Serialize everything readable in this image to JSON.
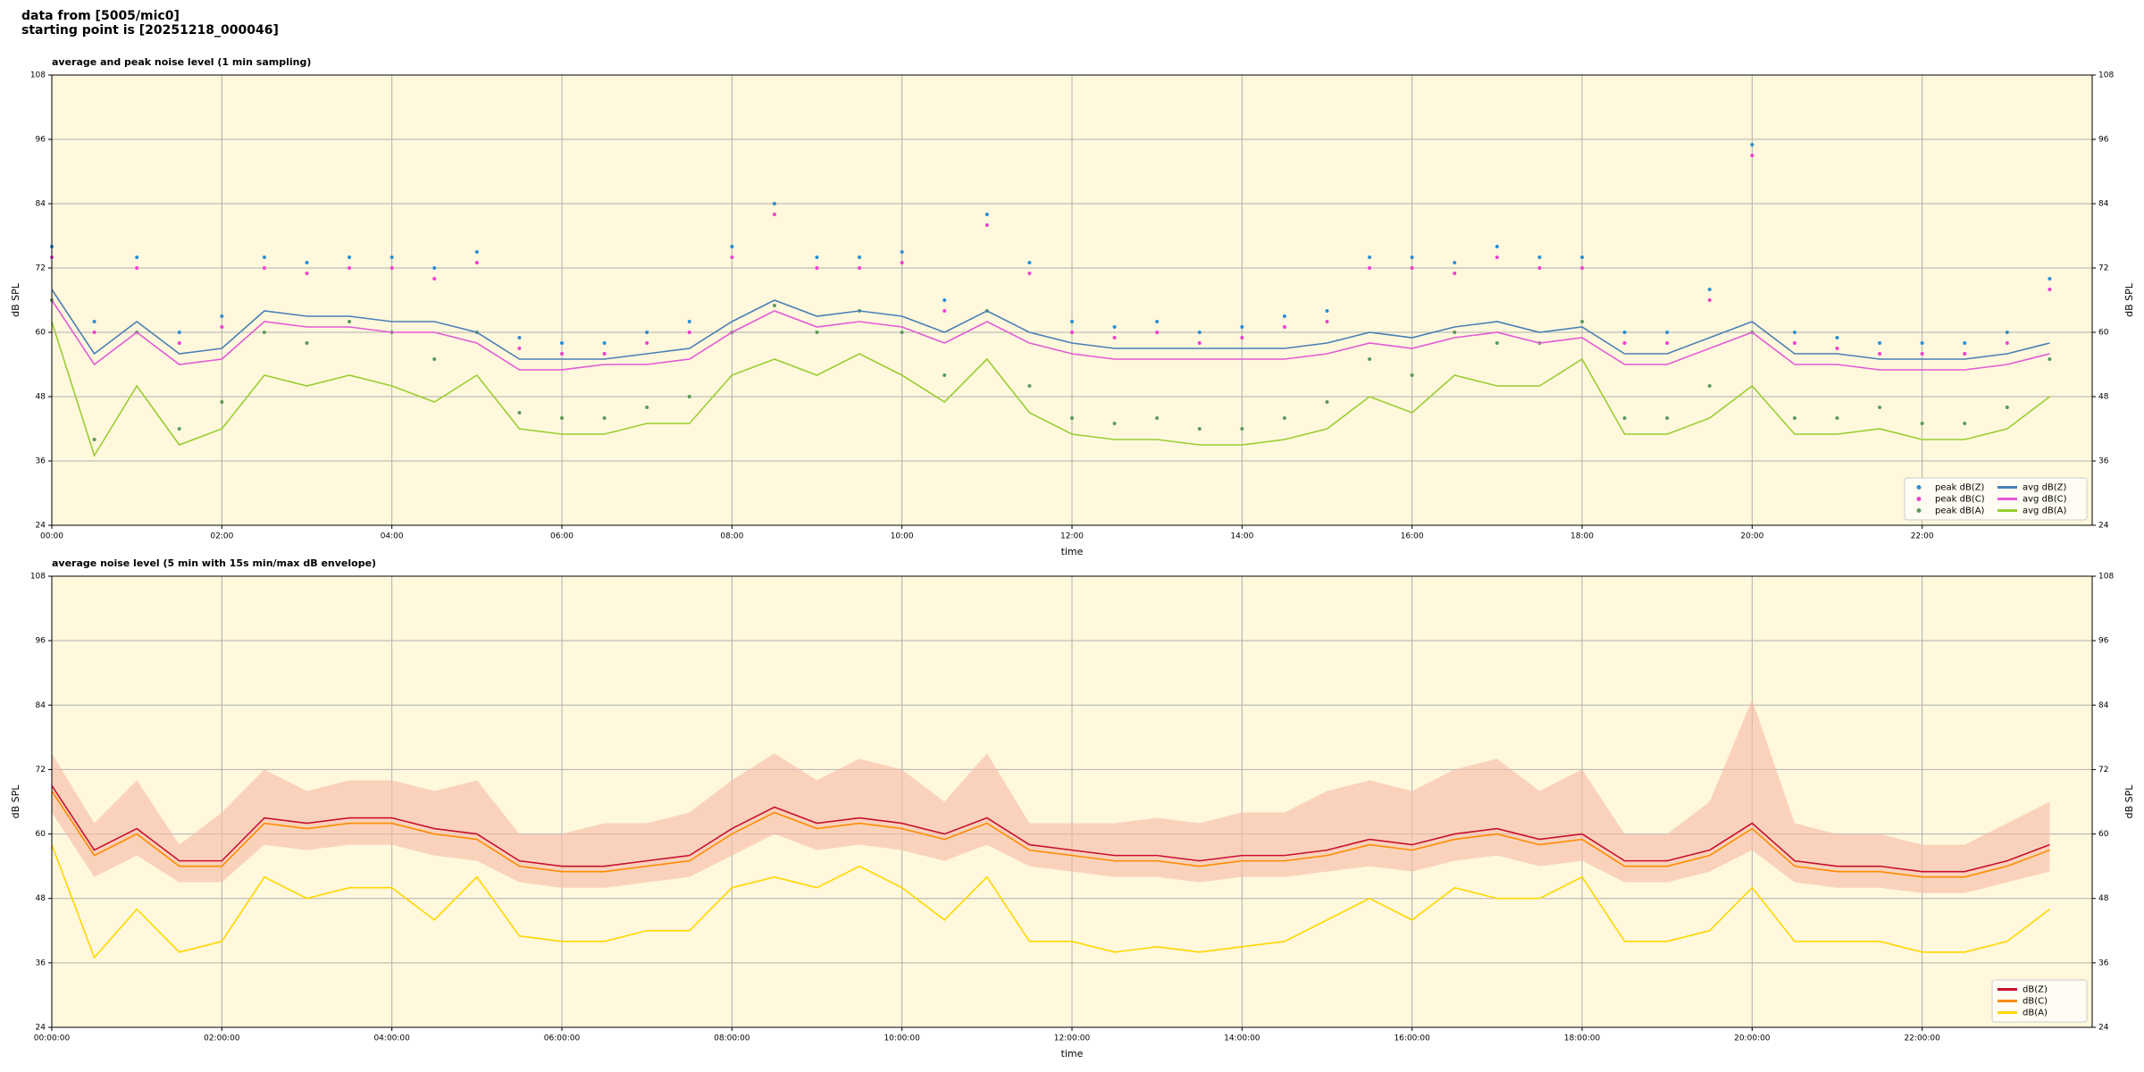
{
  "header": {
    "line1": "data from [5005/mic0]",
    "line2": "starting point is [20251218_000046]"
  },
  "chart_data": [
    {
      "type": "line",
      "title": "average and peak noise level (1 min sampling)",
      "xlabel": "time",
      "ylabel": "dB SPL",
      "x": [
        0,
        0.5,
        1,
        1.5,
        2,
        2.5,
        3,
        3.5,
        4,
        4.5,
        5,
        5.5,
        6,
        6.5,
        7,
        7.5,
        8,
        8.5,
        9,
        9.5,
        10,
        10.5,
        11,
        11.5,
        12,
        12.5,
        13,
        13.5,
        14,
        14.5,
        15,
        15.5,
        16,
        16.5,
        17,
        17.5,
        18,
        18.5,
        19,
        19.5,
        20,
        20.5,
        21,
        21.5,
        22,
        22.5,
        23,
        23.5
      ],
      "xlim": [
        0,
        24
      ],
      "xticks": [
        {
          "value": 0,
          "label": "00:00"
        },
        {
          "value": 2,
          "label": "02:00"
        },
        {
          "value": 4,
          "label": "04:00"
        },
        {
          "value": 6,
          "label": "06:00"
        },
        {
          "value": 8,
          "label": "08:00"
        },
        {
          "value": 10,
          "label": "10:00"
        },
        {
          "value": 12,
          "label": "12:00"
        },
        {
          "value": 14,
          "label": "14:00"
        },
        {
          "value": 16,
          "label": "16:00"
        },
        {
          "value": 18,
          "label": "18:00"
        },
        {
          "value": 20,
          "label": "20:00"
        },
        {
          "value": 22,
          "label": "22:00"
        }
      ],
      "ylim": [
        24,
        108
      ],
      "yticks": [
        24,
        36,
        48,
        60,
        72,
        84,
        96,
        108
      ],
      "grid": true,
      "background": "#fff8dc",
      "legend": "lower right",
      "legend_columns": 2,
      "series": [
        {
          "name": "peak dB(Z)",
          "type": "scatter",
          "color": "#2a8fd6",
          "values": [
            76,
            62,
            74,
            60,
            63,
            74,
            73,
            74,
            74,
            72,
            75,
            59,
            58,
            58,
            60,
            62,
            76,
            84,
            74,
            74,
            75,
            66,
            82,
            73,
            62,
            61,
            62,
            60,
            61,
            63,
            64,
            74,
            74,
            73,
            76,
            74,
            74,
            60,
            60,
            68,
            95,
            60,
            59,
            58,
            58,
            58,
            60,
            70
          ]
        },
        {
          "name": "peak dB(C)",
          "type": "scatter",
          "color": "#f03fd0",
          "values": [
            74,
            60,
            72,
            58,
            61,
            72,
            71,
            72,
            72,
            70,
            73,
            57,
            56,
            56,
            58,
            60,
            74,
            82,
            72,
            72,
            73,
            64,
            80,
            71,
            60,
            59,
            60,
            58,
            59,
            61,
            62,
            72,
            72,
            71,
            74,
            72,
            72,
            58,
            58,
            66,
            93,
            58,
            57,
            56,
            56,
            56,
            58,
            68
          ]
        },
        {
          "name": "peak dB(A)",
          "type": "scatter",
          "color": "#5c9a5c",
          "values": [
            66,
            40,
            60,
            42,
            47,
            60,
            58,
            62,
            60,
            55,
            60,
            45,
            44,
            44,
            46,
            48,
            60,
            65,
            60,
            64,
            60,
            52,
            64,
            50,
            44,
            43,
            44,
            42,
            42,
            44,
            47,
            55,
            52,
            60,
            58,
            58,
            62,
            44,
            44,
            50,
            60,
            44,
            44,
            46,
            43,
            43,
            46,
            55
          ]
        },
        {
          "name": "avg dB(Z)",
          "type": "line",
          "color": "#4a7fb5",
          "values": [
            68,
            56,
            62,
            56,
            57,
            64,
            63,
            63,
            62,
            62,
            60,
            55,
            55,
            55,
            56,
            57,
            62,
            66,
            63,
            64,
            63,
            60,
            64,
            60,
            58,
            57,
            57,
            57,
            57,
            57,
            58,
            60,
            59,
            61,
            62,
            60,
            61,
            56,
            56,
            59,
            62,
            56,
            56,
            55,
            55,
            55,
            56,
            58
          ]
        },
        {
          "name": "avg dB(C)",
          "type": "line",
          "color": "#e25ad6",
          "values": [
            66,
            54,
            60,
            54,
            55,
            62,
            61,
            61,
            60,
            60,
            58,
            53,
            53,
            54,
            54,
            55,
            60,
            64,
            61,
            62,
            61,
            58,
            62,
            58,
            56,
            55,
            55,
            55,
            55,
            55,
            56,
            58,
            57,
            59,
            60,
            58,
            59,
            54,
            54,
            57,
            60,
            54,
            54,
            53,
            53,
            53,
            54,
            56
          ]
        },
        {
          "name": "avg dB(A)",
          "type": "line",
          "color": "#9acd32",
          "values": [
            62,
            37,
            50,
            39,
            42,
            52,
            50,
            52,
            50,
            47,
            52,
            42,
            41,
            41,
            43,
            43,
            52,
            55,
            52,
            56,
            52,
            47,
            55,
            45,
            41,
            40,
            40,
            39,
            39,
            40,
            42,
            48,
            45,
            52,
            50,
            50,
            55,
            41,
            41,
            44,
            50,
            41,
            41,
            42,
            40,
            40,
            42,
            48
          ]
        }
      ]
    },
    {
      "type": "line",
      "title": "average noise level (5 min with 15s min/max dB envelope)",
      "xlabel": "time",
      "ylabel": "dB SPL",
      "x": [
        0,
        0.5,
        1,
        1.5,
        2,
        2.5,
        3,
        3.5,
        4,
        4.5,
        5,
        5.5,
        6,
        6.5,
        7,
        7.5,
        8,
        8.5,
        9,
        9.5,
        10,
        10.5,
        11,
        11.5,
        12,
        12.5,
        13,
        13.5,
        14,
        14.5,
        15,
        15.5,
        16,
        16.5,
        17,
        17.5,
        18,
        18.5,
        19,
        19.5,
        20,
        20.5,
        21,
        21.5,
        22,
        22.5,
        23,
        23.5
      ],
      "xlim": [
        0,
        24
      ],
      "xticks": [
        {
          "value": 0,
          "label": "00:00:00"
        },
        {
          "value": 2,
          "label": "02:00:00"
        },
        {
          "value": 4,
          "label": "04:00:00"
        },
        {
          "value": 6,
          "label": "06:00:00"
        },
        {
          "value": 8,
          "label": "08:00:00"
        },
        {
          "value": 10,
          "label": "10:00:00"
        },
        {
          "value": 12,
          "label": "12:00:00"
        },
        {
          "value": 14,
          "label": "14:00:00"
        },
        {
          "value": 16,
          "label": "16:00:00"
        },
        {
          "value": 18,
          "label": "18:00:00"
        },
        {
          "value": 20,
          "label": "20:00:00"
        },
        {
          "value": 22,
          "label": "22:00:00"
        }
      ],
      "ylim": [
        24,
        108
      ],
      "yticks": [
        24,
        36,
        48,
        60,
        72,
        84,
        96,
        108
      ],
      "grid": true,
      "background": "#fff8dc",
      "legend": "lower right",
      "legend_columns": 1,
      "envelope": {
        "color": "#f6b9a6",
        "upper": [
          75,
          62,
          70,
          58,
          64,
          72,
          68,
          70,
          70,
          68,
          70,
          60,
          60,
          62,
          62,
          64,
          70,
          75,
          70,
          74,
          72,
          66,
          75,
          62,
          62,
          62,
          63,
          62,
          64,
          64,
          68,
          70,
          68,
          72,
          74,
          68,
          72,
          60,
          60,
          66,
          85,
          62,
          60,
          60,
          58,
          58,
          62,
          66
        ],
        "lower": [
          64,
          52,
          56,
          51,
          51,
          58,
          57,
          58,
          58,
          56,
          55,
          51,
          50,
          50,
          51,
          52,
          56,
          60,
          57,
          58,
          57,
          55,
          58,
          54,
          53,
          52,
          52,
          51,
          52,
          52,
          53,
          54,
          53,
          55,
          56,
          54,
          55,
          51,
          51,
          53,
          57,
          51,
          50,
          50,
          49,
          49,
          51,
          53
        ]
      },
      "series": [
        {
          "name": "dB(Z)",
          "type": "line",
          "color": "#c8102e",
          "values": [
            69,
            57,
            61,
            55,
            55,
            63,
            62,
            63,
            63,
            61,
            60,
            55,
            54,
            54,
            55,
            56,
            61,
            65,
            62,
            63,
            62,
            60,
            63,
            58,
            57,
            56,
            56,
            55,
            56,
            56,
            57,
            59,
            58,
            60,
            61,
            59,
            60,
            55,
            55,
            57,
            62,
            55,
            54,
            54,
            53,
            53,
            55,
            58
          ]
        },
        {
          "name": "dB(C)",
          "type": "line",
          "color": "#ff8c00",
          "values": [
            68,
            56,
            60,
            54,
            54,
            62,
            61,
            62,
            62,
            60,
            59,
            54,
            53,
            53,
            54,
            55,
            60,
            64,
            61,
            62,
            61,
            59,
            62,
            57,
            56,
            55,
            55,
            54,
            55,
            55,
            56,
            58,
            57,
            59,
            60,
            58,
            59,
            54,
            54,
            56,
            61,
            54,
            53,
            53,
            52,
            52,
            54,
            57
          ]
        },
        {
          "name": "dB(A)",
          "type": "line",
          "color": "#ffd700",
          "values": [
            58,
            37,
            46,
            38,
            40,
            52,
            48,
            50,
            50,
            44,
            52,
            41,
            40,
            40,
            42,
            42,
            50,
            52,
            50,
            54,
            50,
            44,
            52,
            40,
            40,
            38,
            39,
            38,
            39,
            40,
            44,
            48,
            44,
            50,
            48,
            48,
            52,
            40,
            40,
            42,
            50,
            40,
            40,
            40,
            38,
            38,
            40,
            46
          ]
        }
      ]
    }
  ]
}
